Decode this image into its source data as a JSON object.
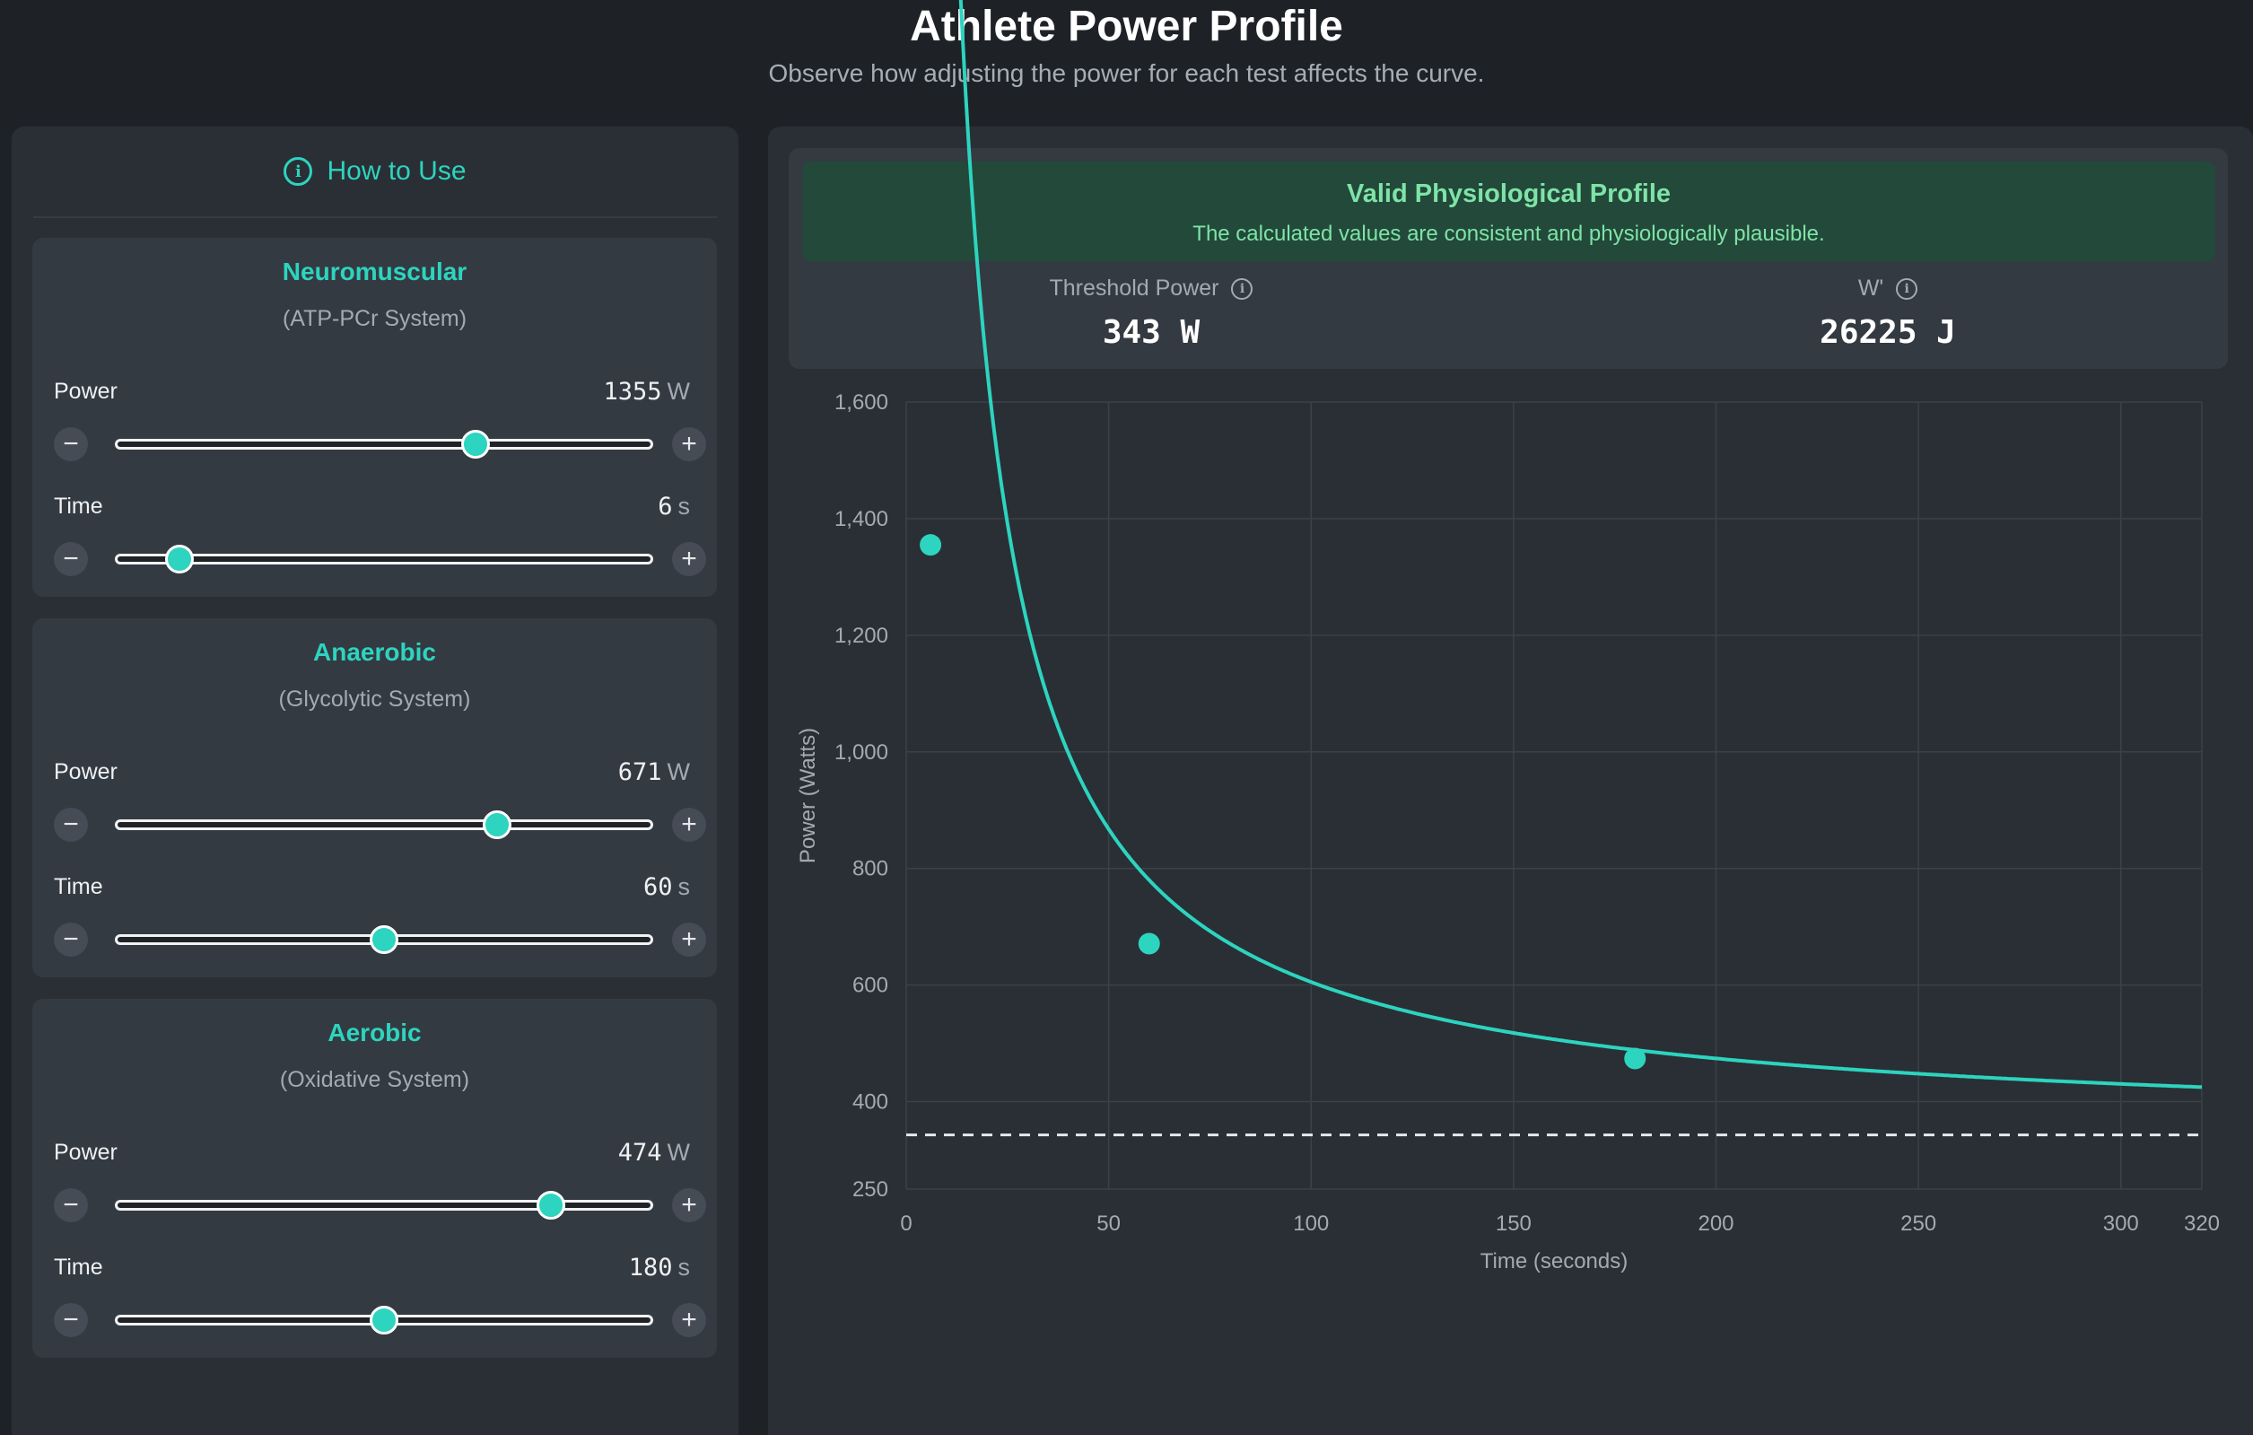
{
  "header": {
    "title": "Athlete Power Profile",
    "subtitle": "Observe how adjusting the power for each test affects the curve."
  },
  "how_to_use": {
    "label": "How to Use",
    "icon": "info-icon"
  },
  "systems": [
    {
      "name": "Neuromuscular",
      "subtitle": "(ATP-PCr System)",
      "power": {
        "label": "Power",
        "value": "1355",
        "unit": "W",
        "fraction": 0.67
      },
      "time": {
        "label": "Time",
        "value": "6",
        "unit": "s",
        "fraction": 0.12
      }
    },
    {
      "name": "Anaerobic",
      "subtitle": "(Glycolytic System)",
      "power": {
        "label": "Power",
        "value": "671",
        "unit": "W",
        "fraction": 0.71
      },
      "time": {
        "label": "Time",
        "value": "60",
        "unit": "s",
        "fraction": 0.5
      }
    },
    {
      "name": "Aerobic",
      "subtitle": "(Oxidative System)",
      "power": {
        "label": "Power",
        "value": "474",
        "unit": "W",
        "fraction": 0.81
      },
      "time": {
        "label": "Time",
        "value": "180",
        "unit": "s",
        "fraction": 0.5
      }
    }
  ],
  "controls": {
    "minus_symbol": "−",
    "plus_symbol": "+"
  },
  "results": {
    "status_title": "Valid Physiological Profile",
    "status_text": "The calculated values are consistent and physiologically plausible.",
    "threshold": {
      "label": "Threshold Power",
      "value": "343 W"
    },
    "w_prime": {
      "label": "W'",
      "value": "26225 J"
    }
  },
  "colors": {
    "accent": "#2dd4bf",
    "valid_green": "#7fe3a7",
    "valid_bg": "#22493a"
  },
  "chart_data": {
    "type": "line",
    "xlabel": "Time (seconds)",
    "ylabel": "Power (Watts)",
    "xlim": [
      0,
      320
    ],
    "ylim": [
      250,
      1600
    ],
    "x_ticks": [
      0,
      50,
      100,
      150,
      200,
      250,
      300,
      320
    ],
    "y_ticks": [
      250,
      400,
      600,
      800,
      1000,
      1200,
      1400,
      1600
    ],
    "y_tick_labels": [
      "250",
      "400",
      "600",
      "800",
      "1,000",
      "1,200",
      "1,400",
      "1,600"
    ],
    "grid": true,
    "threshold_line": 343,
    "w_prime": 26225,
    "curve_x_start": 1,
    "test_points": [
      {
        "x": 6,
        "y": 1355
      },
      {
        "x": 60,
        "y": 671
      },
      {
        "x": 180,
        "y": 474
      }
    ]
  }
}
